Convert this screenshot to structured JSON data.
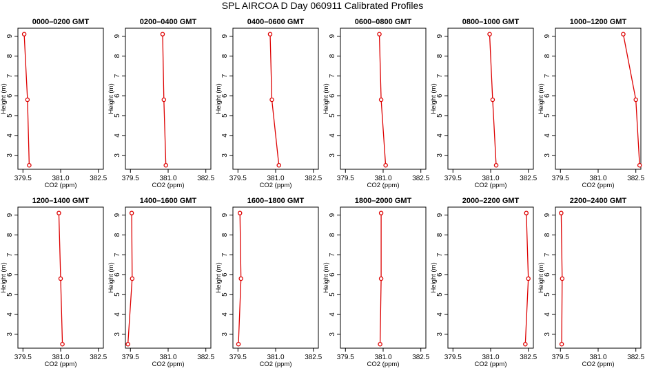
{
  "main_title": "SPL AIRCOA D  Day 060911  Calibrated Profiles",
  "chart_data": {
    "type": "line",
    "title": "SPL AIRCOA D  Day 060911  Calibrated Profiles",
    "xlabel": "CO2 (ppm)",
    "ylabel": "Height (m)",
    "xlim": [
      379.3,
      382.7
    ],
    "ylim": [
      2.3,
      9.4
    ],
    "xticks": [
      379.5,
      381.0,
      382.5
    ],
    "xtick_labels": [
      "379.5",
      "381.0",
      "382.5"
    ],
    "yticks": [
      3,
      4,
      5,
      6,
      7,
      8,
      9
    ],
    "yticks_rotated": true,
    "grid": false,
    "line_color": "#dd0000",
    "marker": "open-circle",
    "panels": [
      {
        "title": "0000–0200 GMT",
        "x": [
          379.55,
          379.68,
          379.75
        ],
        "y": [
          9.1,
          5.8,
          2.5
        ]
      },
      {
        "title": "0200–0400 GMT",
        "x": [
          380.78,
          380.83,
          380.91
        ],
        "y": [
          9.1,
          5.8,
          2.5
        ]
      },
      {
        "title": "0400–0600 GMT",
        "x": [
          380.78,
          380.85,
          381.13
        ],
        "y": [
          9.1,
          5.8,
          2.5
        ]
      },
      {
        "title": "0600–0800 GMT",
        "x": [
          380.85,
          380.92,
          381.1
        ],
        "y": [
          9.1,
          5.8,
          2.5
        ]
      },
      {
        "title": "0800–1000 GMT",
        "x": [
          380.96,
          381.08,
          381.22
        ],
        "y": [
          9.1,
          5.8,
          2.5
        ]
      },
      {
        "title": "1000–1200 GMT",
        "x": [
          382.0,
          382.5,
          382.65
        ],
        "y": [
          9.1,
          5.8,
          2.5
        ]
      },
      {
        "title": "1200–1400 GMT",
        "x": [
          380.93,
          381.0,
          381.07
        ],
        "y": [
          9.1,
          5.8,
          2.5
        ]
      },
      {
        "title": "1400–1600 GMT",
        "x": [
          379.55,
          379.57,
          379.4
        ],
        "y": [
          9.1,
          5.8,
          2.5
        ]
      },
      {
        "title": "1600–1800 GMT",
        "x": [
          379.58,
          379.62,
          379.52
        ],
        "y": [
          9.1,
          5.8,
          2.5
        ]
      },
      {
        "title": "1800–2000 GMT",
        "x": [
          380.92,
          380.92,
          380.88
        ],
        "y": [
          9.1,
          5.8,
          2.5
        ]
      },
      {
        "title": "2000–2200 GMT",
        "x": [
          382.42,
          382.5,
          382.38
        ],
        "y": [
          9.1,
          5.8,
          2.5
        ]
      },
      {
        "title": "2200–2400 GMT",
        "x": [
          379.53,
          379.57,
          379.55
        ],
        "y": [
          9.1,
          5.8,
          2.5
        ]
      }
    ]
  }
}
